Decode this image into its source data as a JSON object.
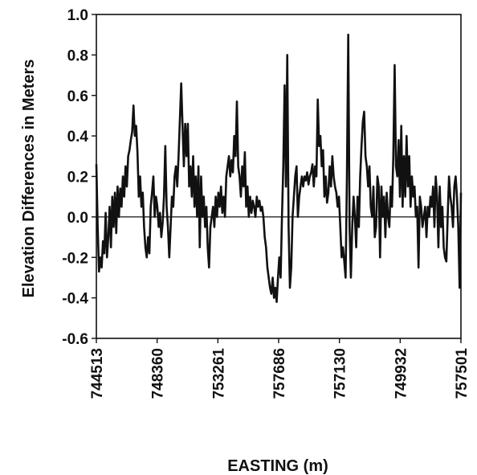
{
  "chart_data": {
    "type": "line",
    "title": "",
    "xlabel": "EASTING (m)",
    "ylabel": "Elevation Differences in Meters",
    "ylim": [
      -0.6,
      1.0
    ],
    "yticks": [
      "-0.6",
      "-0.4",
      "-0.2",
      "0.0",
      "0.2",
      "0.4",
      "0.6",
      "0.8",
      "1.0"
    ],
    "xtick_labels": [
      "744513",
      "748360",
      "753261",
      "757686",
      "757130",
      "749932",
      "757501"
    ],
    "grid": false,
    "zero_line": true,
    "line_color": "#111111",
    "series": [
      {
        "values": [
          0.26,
          -0.05,
          -0.27,
          -0.2,
          -0.25,
          -0.12,
          -0.18,
          0.02,
          -0.2,
          -0.1,
          0.05,
          -0.15,
          0.1,
          -0.05,
          0.12,
          -0.08,
          0.15,
          0.0,
          0.14,
          0.05,
          0.2,
          0.1,
          0.25,
          0.15,
          0.3,
          0.33,
          0.38,
          0.42,
          0.55,
          0.4,
          0.45,
          0.32,
          0.1,
          0.2,
          0.05,
          0.12,
          -0.05,
          -0.15,
          -0.2,
          -0.1,
          -0.18,
          0.05,
          0.12,
          0.2,
          0.0,
          0.1,
          0.05,
          -0.05,
          0.02,
          -0.1,
          -0.03,
          0.1,
          0.35,
          0.05,
          -0.05,
          -0.2,
          -0.05,
          0.1,
          0.05,
          0.2,
          0.25,
          0.15,
          0.3,
          0.48,
          0.66,
          0.45,
          0.25,
          0.46,
          0.3,
          0.46,
          0.15,
          0.25,
          0.1,
          0.3,
          0.05,
          0.2,
          0.0,
          0.25,
          -0.15,
          0.2,
          0.0,
          0.1,
          -0.05,
          0.05,
          -0.15,
          -0.25,
          -0.05,
          0.0,
          0.05,
          -0.05,
          0.1,
          0.0,
          0.12,
          0.05,
          0.15,
          0.02,
          0.1,
          0.0,
          0.2,
          0.25,
          0.3,
          0.2,
          0.28,
          0.22,
          0.4,
          0.3,
          0.57,
          0.25,
          0.2,
          0.1,
          0.25,
          0.15,
          0.32,
          0.05,
          0.15,
          0.0,
          0.1,
          0.02,
          0.08,
          0.05,
          0.0,
          0.1,
          0.05,
          0.08,
          0.03,
          0.05,
          0.0,
          -0.1,
          -0.15,
          -0.25,
          -0.3,
          -0.35,
          -0.38,
          -0.3,
          -0.4,
          -0.35,
          -0.42,
          -0.3,
          -0.2,
          -0.3,
          0.0,
          0.25,
          0.65,
          0.15,
          0.8,
          -0.05,
          -0.35,
          -0.25,
          0.0,
          0.1,
          0.2,
          0.25,
          0.0,
          0.1,
          0.15,
          0.2,
          0.15,
          0.2,
          0.18,
          0.22,
          0.16,
          0.2,
          0.22,
          0.26,
          0.15,
          0.25,
          0.2,
          0.58,
          0.35,
          0.4,
          0.25,
          0.33,
          0.1,
          0.2,
          0.07,
          0.12,
          0.25,
          0.15,
          0.3,
          0.2,
          0.15,
          0.12,
          0.05,
          0.1,
          -0.05,
          -0.2,
          -0.15,
          -0.22,
          -0.3,
          0.2,
          0.9,
          -0.05,
          -0.3,
          -0.05,
          0.1,
          0.0,
          -0.15,
          0.1,
          -0.05,
          0.2,
          0.35,
          0.47,
          0.52,
          0.3,
          0.25,
          0.15,
          0.25,
          0.05,
          0.0,
          0.15,
          -0.1,
          -0.05,
          0.2,
          0.15,
          -0.2,
          0.15,
          0.0,
          0.1,
          -0.1,
          0.12,
          0.0,
          -0.05,
          0.15,
          0.05,
          0.3,
          0.75,
          0.25,
          0.2,
          0.38,
          0.1,
          0.45,
          0.05,
          0.3,
          0.1,
          0.4,
          0.15,
          0.3,
          0.05,
          0.2,
          0.1,
          0.15,
          0.0,
          0.05,
          -0.25,
          0.1,
          0.05,
          -0.05,
          0.0,
          0.05,
          -0.1,
          0.05,
          0.0,
          0.1,
          0.05,
          0.15,
          -0.05,
          0.2,
          0.1,
          -0.15,
          0.15,
          -0.05,
          0.05,
          -0.15,
          -0.2,
          -0.22,
          0.0,
          0.2,
          0.1,
          0.05,
          -0.05,
          0.15,
          0.2,
          0.1,
          -0.05,
          -0.35,
          0.12
        ]
      }
    ]
  }
}
